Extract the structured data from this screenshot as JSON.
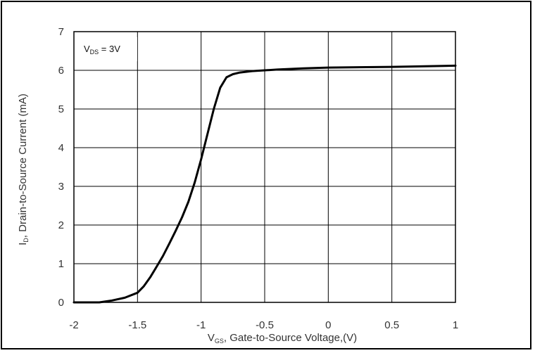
{
  "chart_data": {
    "type": "line",
    "x": [
      -2,
      -1.9,
      -1.8,
      -1.7,
      -1.6,
      -1.5,
      -1.45,
      -1.4,
      -1.35,
      -1.3,
      -1.25,
      -1.2,
      -1.15,
      -1.1,
      -1.05,
      -1.0,
      -0.95,
      -0.9,
      -0.85,
      -0.8,
      -0.75,
      -0.7,
      -0.6,
      -0.5,
      -0.4,
      -0.2,
      0,
      0.5,
      1.0
    ],
    "series": [
      {
        "values": [
          0,
          0,
          0,
          0.05,
          0.12,
          0.25,
          0.42,
          0.65,
          0.92,
          1.2,
          1.52,
          1.85,
          2.2,
          2.6,
          3.1,
          3.7,
          4.35,
          5.0,
          5.55,
          5.82,
          5.9,
          5.94,
          5.98,
          6.0,
          6.02,
          6.05,
          6.07,
          6.09,
          6.12
        ]
      }
    ],
    "xlim": [
      -2,
      1
    ],
    "ylim": [
      0,
      7
    ],
    "x_ticks": [
      "-2",
      "-1.5",
      "-1",
      "-0.5",
      "0",
      "0.5",
      "1"
    ],
    "y_ticks": [
      "0",
      "1",
      "2",
      "3",
      "4",
      "5",
      "6",
      "7"
    ],
    "xlabel": {
      "main": "V",
      "sub": "GS",
      "rest": ", Gate-to-Source Voltage,(V)"
    },
    "ylabel": {
      "main": "I",
      "sub": "D",
      "rest": ", Drain-to-Source Current (mA)"
    },
    "annotation": {
      "main": "V",
      "sub": "DS",
      "rest": " = 3V"
    },
    "grid": true,
    "line_color": "#000000",
    "grid_color": "#000000"
  }
}
